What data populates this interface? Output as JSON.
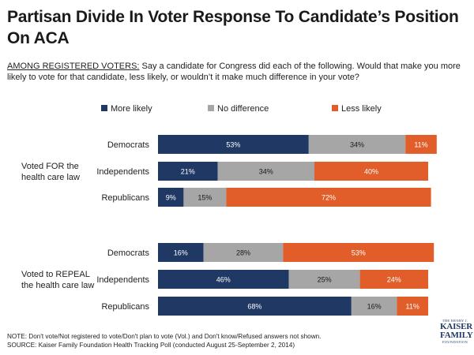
{
  "title": "Partisan Divide In Voter Response To Candidate’s Position On ACA",
  "subtitle": {
    "lead": "AMONG REGISTERED VOTERS:",
    "text": " Say a candidate for Congress did each of the following.  Would that make you more likely to vote for that candidate, less likely, or wouldn’t it make much difference in your vote?"
  },
  "colors": {
    "more": "#1f3864",
    "nodiff": "#a6a6a6",
    "less": "#e15d29"
  },
  "chart_data": {
    "type": "bar",
    "orientation": "horizontal",
    "stacked": true,
    "legend_position": "top",
    "series_names": [
      "More likely",
      "No difference",
      "Less likely"
    ],
    "groups": [
      {
        "label": "Voted FOR the health care law",
        "rows": [
          {
            "category": "Democrats",
            "values": [
              53,
              34,
              11
            ]
          },
          {
            "category": "Independents",
            "values": [
              21,
              34,
              40
            ]
          },
          {
            "category": "Republicans",
            "values": [
              9,
              15,
              72
            ]
          }
        ]
      },
      {
        "label": "Voted to REPEAL the health care law",
        "rows": [
          {
            "category": "Democrats",
            "values": [
              16,
              28,
              53
            ]
          },
          {
            "category": "Independents",
            "values": [
              46,
              25,
              24
            ]
          },
          {
            "category": "Republicans",
            "values": [
              68,
              16,
              11
            ]
          }
        ]
      }
    ]
  },
  "footer": {
    "note": "NOTE: Don't vote/Not registered to vote/Don't plan to vote (Vol.) and Don't know/Refused answers not shown.",
    "source": "SOURCE: Kaiser Family Foundation Health Tracking Poll (conducted August 25-September 2, 2014)"
  },
  "logo": {
    "line1": "THE HENRY J.",
    "line2": "KAISER",
    "line3": "FAMILY",
    "line4": "FOUNDATION"
  }
}
